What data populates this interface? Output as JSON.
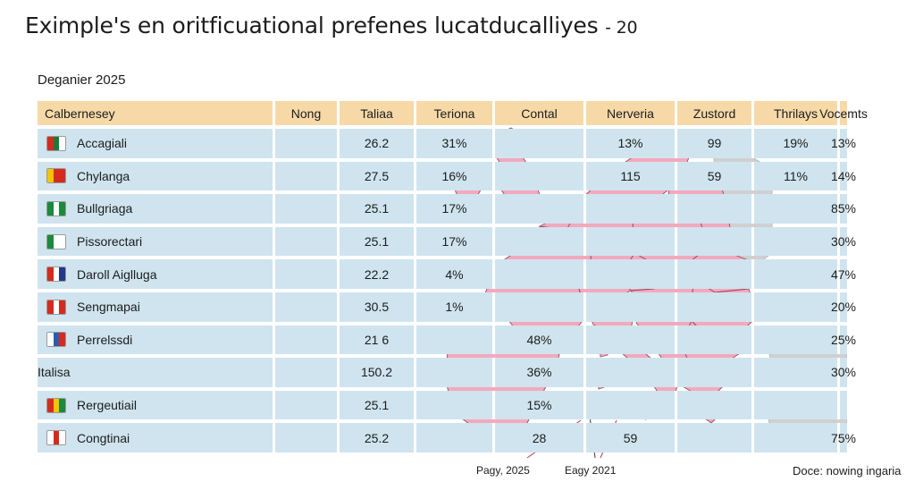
{
  "title": "Eximple's en oritficuational prefenes lucatducalliyes",
  "title_suffix": "- 20",
  "subtitle": "Deganier 2025",
  "colors": {
    "header_bg": "#f7d9a8",
    "row_bg": "#cfe4ee",
    "cell_line": "#ffffff",
    "map_land": "#f4a8bd",
    "map_border": "#9a4a62",
    "map_other": "#d0d0d0"
  },
  "columns": [
    "Calbernesey",
    "Nong",
    "Taliaa",
    "Teriona",
    "Contal",
    "Nerveria",
    "Zustord",
    "Thrilays",
    "Vocemts"
  ],
  "rows": [
    {
      "name": "Accagiali",
      "flag": "flag-icon",
      "values": [
        "26.2",
        "31%",
        "",
        "13%",
        "99",
        "19%",
        "13%"
      ]
    },
    {
      "name": "Chylanga",
      "flag": "flag-icon",
      "values": [
        "27.5",
        "16%",
        "",
        "115",
        "59",
        "11%",
        "14%"
      ]
    },
    {
      "name": "Bullgriaga",
      "flag": "flag-icon",
      "values": [
        "25.1",
        "17%",
        "",
        "",
        "",
        "",
        "85%"
      ]
    },
    {
      "name": "Pissorectari",
      "flag": "flag-icon",
      "values": [
        "25.1",
        "17%",
        "",
        "",
        "",
        "",
        "30%"
      ]
    },
    {
      "name": "Daroll Aiglluga",
      "flag": "flag-icon",
      "values": [
        "22.2",
        "4%",
        "",
        "",
        "",
        "",
        "47%"
      ]
    },
    {
      "name": "Sengmapai",
      "flag": "flag-icon",
      "values": [
        "30.5",
        "1%",
        "",
        "",
        "",
        "",
        "20%"
      ]
    },
    {
      "name": "Perrelssdi",
      "flag": "flag-icon",
      "values": [
        "21 6",
        "",
        "48%",
        "",
        "",
        "",
        "25%"
      ]
    },
    {
      "name": "Italisa",
      "flag": "",
      "values": [
        "150.2",
        "",
        "36%",
        "",
        "",
        "",
        "30%"
      ]
    },
    {
      "name": "Rergeutiail",
      "flag": "flag-icon",
      "values": [
        "25.1",
        "",
        "15%",
        "",
        "",
        "",
        ""
      ]
    },
    {
      "name": "Congtinai",
      "flag": "flag-icon",
      "values": [
        "25.2",
        "",
        "28",
        "59",
        "",
        "",
        "75%"
      ]
    }
  ],
  "footer": {
    "label_1": "Pagy, 2025",
    "label_2": "Eagy 2021",
    "source": "Doce: nowing ingaria"
  }
}
